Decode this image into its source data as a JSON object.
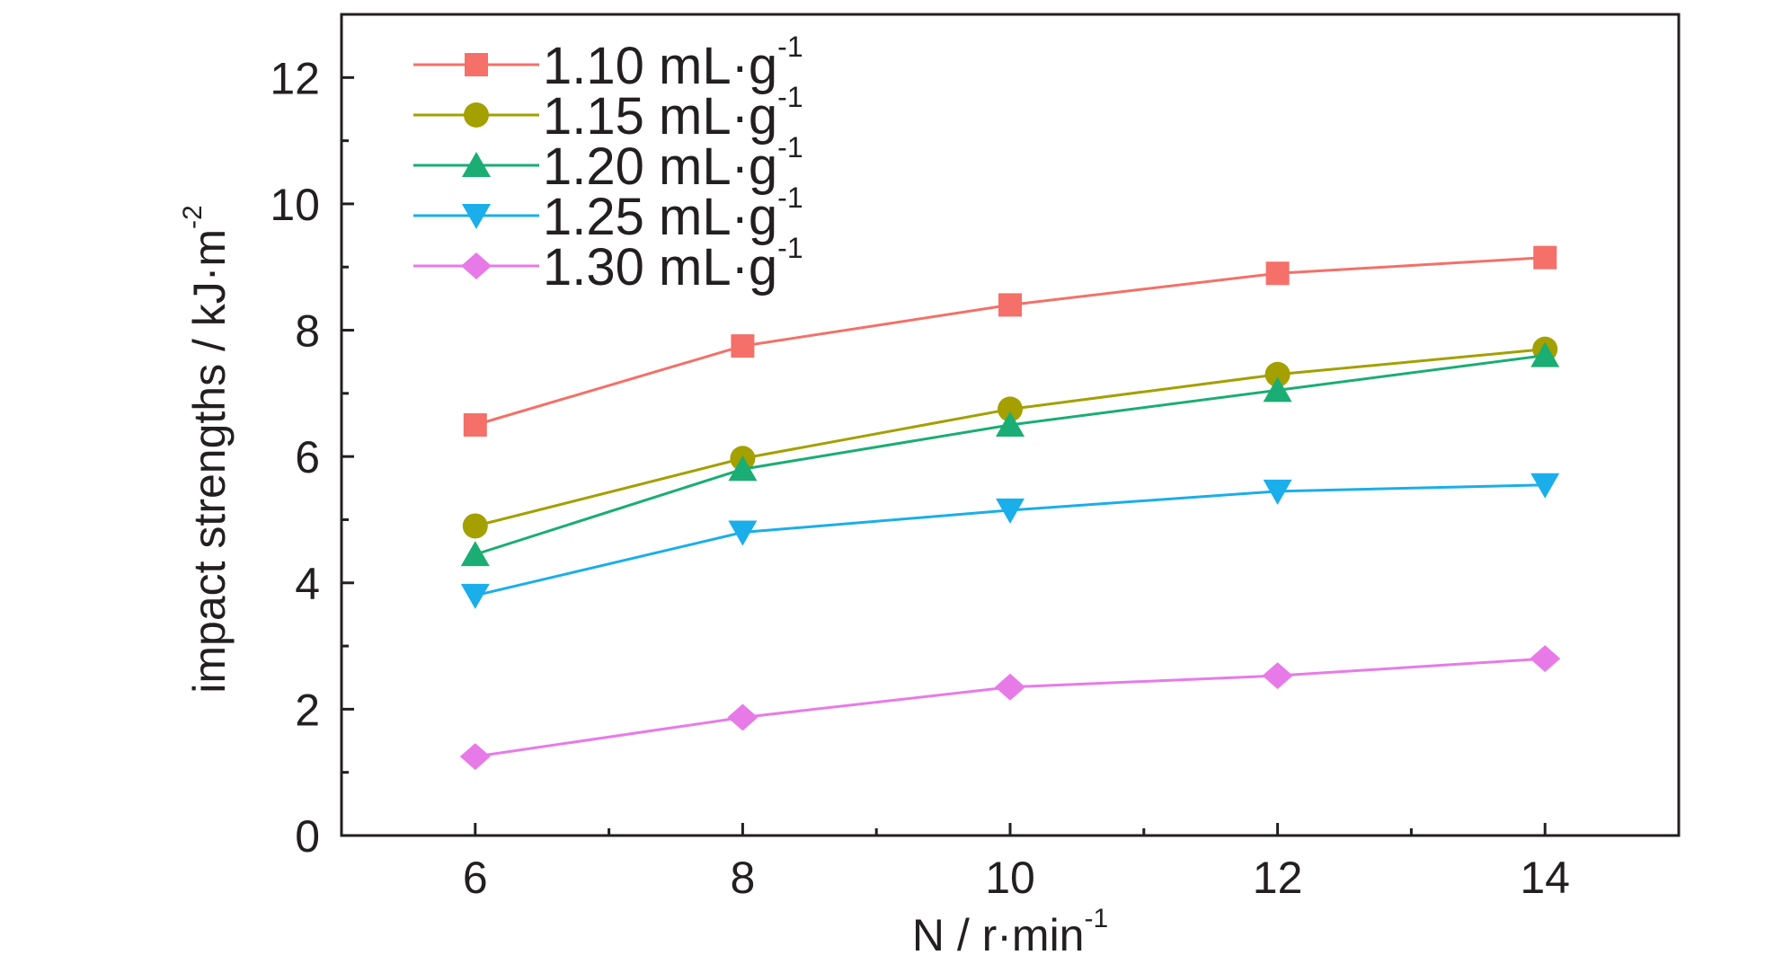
{
  "chart_data": {
    "type": "line",
    "x": [
      6,
      8,
      10,
      12,
      14
    ],
    "xlim": [
      5,
      15
    ],
    "ylim": [
      0,
      13
    ],
    "xticks": [
      6,
      8,
      10,
      12,
      14
    ],
    "yticks": [
      0,
      2,
      4,
      6,
      8,
      10,
      12
    ],
    "xlabel": {
      "main": "N / r·min",
      "sup": "-1"
    },
    "ylabel": {
      "main": "impact strengths / kJ·m",
      "sup": "-2"
    },
    "legend_position": "top-left",
    "grid": false,
    "series": [
      {
        "name": "1.10 mL·g",
        "sup": "-1",
        "color": "#f47068",
        "marker": "square",
        "values": [
          6.5,
          7.75,
          8.4,
          8.9,
          9.15
        ]
      },
      {
        "name": "1.15 mL·g",
        "sup": "-1",
        "color": "#a3a000",
        "marker": "circle",
        "values": [
          4.9,
          5.97,
          6.75,
          7.3,
          7.7
        ]
      },
      {
        "name": "1.20 mL·g",
        "sup": "-1",
        "color": "#1aad74",
        "marker": "triangle-up",
        "values": [
          4.45,
          5.8,
          6.5,
          7.05,
          7.6
        ]
      },
      {
        "name": "1.25 mL·g",
        "sup": "-1",
        "color": "#1aaeea",
        "marker": "triangle-down",
        "values": [
          3.8,
          4.8,
          5.15,
          5.45,
          5.55
        ]
      },
      {
        "name": "1.30 mL·g",
        "sup": "-1",
        "color": "#e87ae8",
        "marker": "diamond",
        "values": [
          1.25,
          1.87,
          2.35,
          2.53,
          2.8
        ]
      }
    ]
  }
}
